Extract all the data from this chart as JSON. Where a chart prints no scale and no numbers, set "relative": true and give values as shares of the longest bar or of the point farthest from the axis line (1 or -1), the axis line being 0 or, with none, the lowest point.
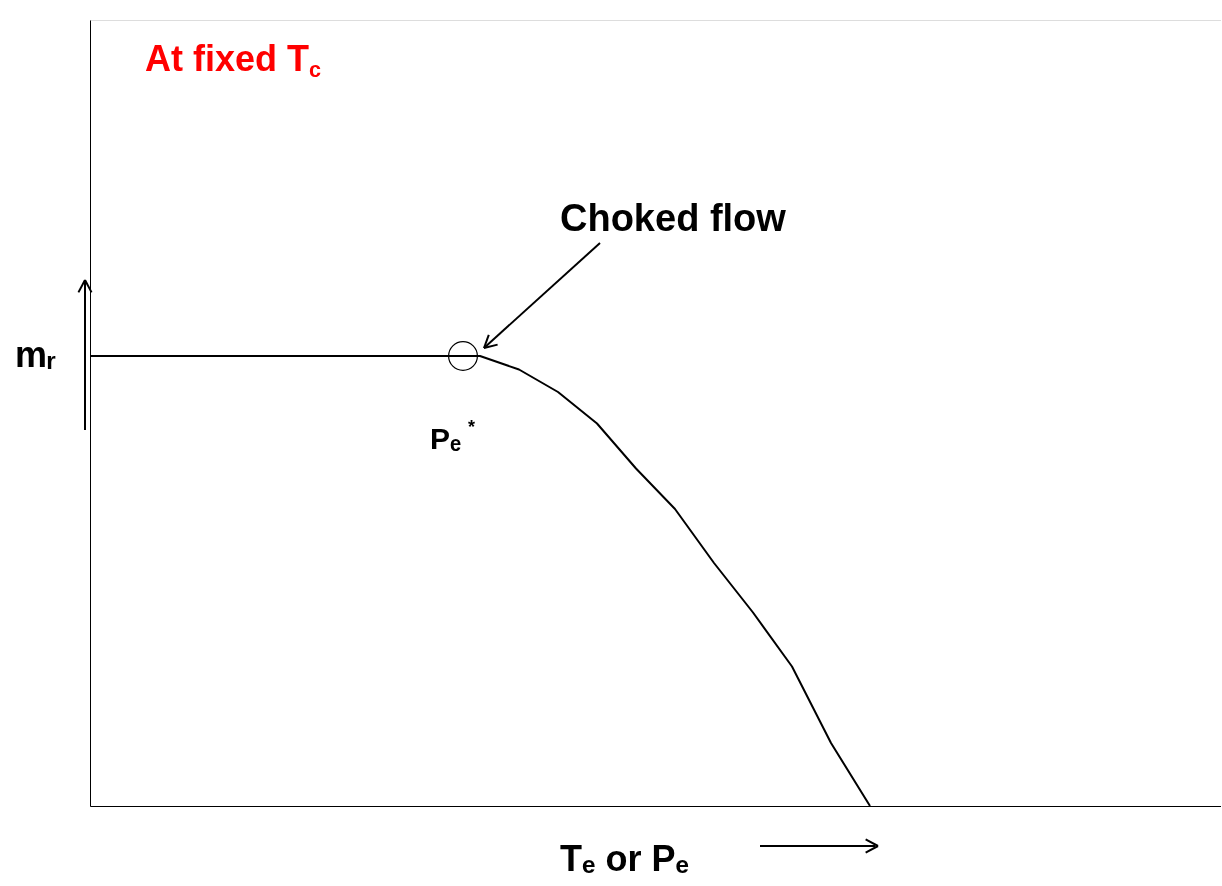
{
  "chart_data": {
    "type": "line",
    "relative": true,
    "title": "At fixed T$_{c}$",
    "xlabel": "Tₑ or Pₑ",
    "ylabel": "mᵣ",
    "categories": [
      null,
      null,
      null,
      null,
      null,
      null,
      null,
      null,
      null,
      null,
      null,
      null,
      null,
      null,
      null,
      null,
      null,
      null,
      null,
      null,
      null,
      null,
      null,
      null,
      null,
      null,
      null,
      null,
      null,
      null
    ],
    "series": [
      {
        "color": "#000000",
        "values": [
          1,
          1,
          1,
          1,
          1,
          1,
          1,
          1,
          1,
          1,
          1,
          0.97,
          0.92,
          0.85,
          0.75,
          0.66,
          0.54,
          0.43,
          0.31,
          0.14,
          0,
          null,
          null,
          null,
          null,
          null,
          null,
          null,
          null,
          null
        ]
      }
    ],
    "annotations": [
      "Choked flow",
      "Pₑ$^{*}$"
    ],
    "grid": false,
    "marker": "none",
    "line_style": "solid"
  }
}
